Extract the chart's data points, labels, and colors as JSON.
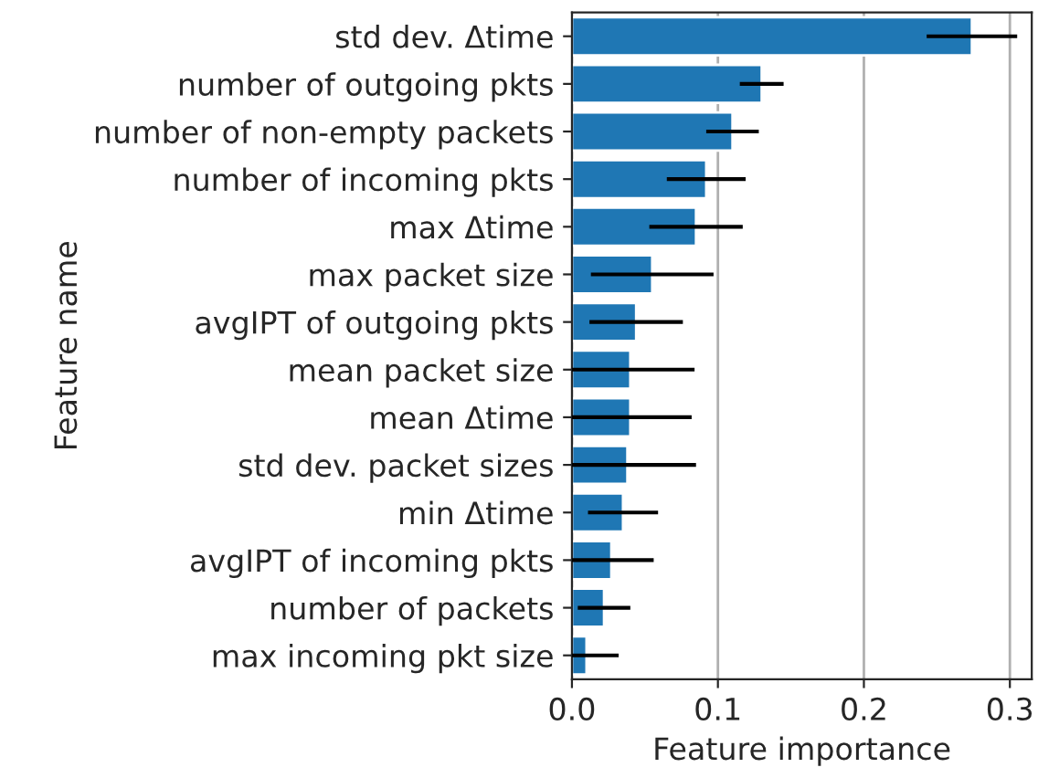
{
  "chart_data": {
    "type": "bar",
    "orientation": "horizontal",
    "xlabel": "Feature importance",
    "ylabel": "Feature name",
    "categories": [
      "std dev. Δtime",
      "number of outgoing pkts",
      "number of non-empty packets",
      "number of incoming pkts",
      "max Δtime",
      "max packet size",
      "avgIPT of outgoing pkts",
      "mean packet size",
      "mean Δtime",
      "std dev. packet sizes",
      "min Δtime",
      "avgIPT of incoming pkts",
      "number of packets",
      "max incoming pkt size"
    ],
    "values": [
      0.274,
      0.13,
      0.11,
      0.092,
      0.085,
      0.055,
      0.044,
      0.04,
      0.04,
      0.038,
      0.035,
      0.027,
      0.022,
      0.01
    ],
    "errors": [
      0.031,
      0.015,
      0.018,
      0.027,
      0.032,
      0.042,
      0.032,
      0.044,
      0.042,
      0.047,
      0.024,
      0.029,
      0.018,
      0.022
    ],
    "color": "#1f77b4",
    "xlim": [
      0,
      0.315
    ],
    "xticks": [
      {
        "value": 0,
        "label": "0.0"
      },
      0.1,
      0.2,
      0.3
    ],
    "grid": "x"
  }
}
